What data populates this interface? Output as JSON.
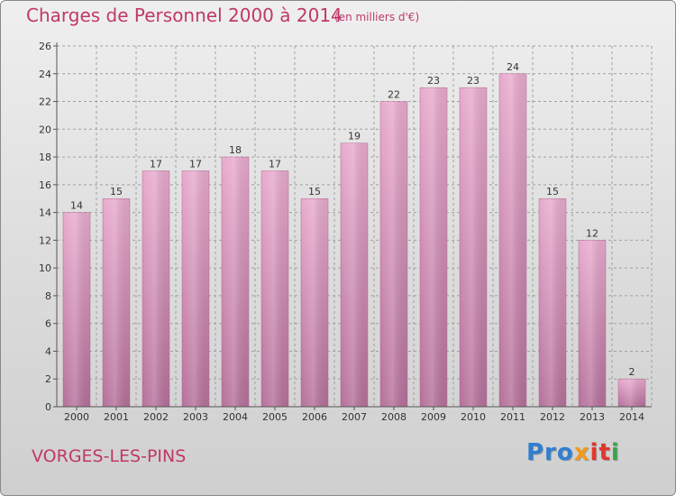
{
  "header": {
    "title": "Charges de Personnel 2000 à 2014",
    "subtitle": "(en milliers d'€)"
  },
  "footer": {
    "place": "VORGES-LES-PINS",
    "logo": "Proxiti",
    "logo_parts": [
      "Pro",
      "x",
      "it",
      "i"
    ]
  },
  "colors": {
    "title": "#c0386a",
    "bar_light": "#e8aacd",
    "bar_dark": "#b5709a",
    "grid": "#a0a0a0"
  },
  "chart_data": {
    "type": "bar",
    "categories": [
      "2000",
      "2001",
      "2002",
      "2003",
      "2004",
      "2005",
      "2006",
      "2007",
      "2008",
      "2009",
      "2010",
      "2011",
      "2012",
      "2013",
      "2014"
    ],
    "values": [
      14,
      15,
      17,
      17,
      18,
      17,
      15,
      19,
      22,
      23,
      23,
      24,
      15,
      12,
      2
    ],
    "data_labels": [
      "14",
      "15",
      "17",
      "17",
      "18",
      "17",
      "15",
      "19",
      "22",
      "23",
      "23",
      "24",
      "15",
      "12",
      "2"
    ],
    "yticks": [
      "0",
      "2",
      "4",
      "6",
      "8",
      "10",
      "12",
      "14",
      "16",
      "18",
      "20",
      "22",
      "24",
      "26"
    ],
    "ylim": [
      0,
      26
    ],
    "title": "Charges de Personnel 2000 à 2014",
    "xlabel": "",
    "ylabel": "",
    "grid": true
  }
}
